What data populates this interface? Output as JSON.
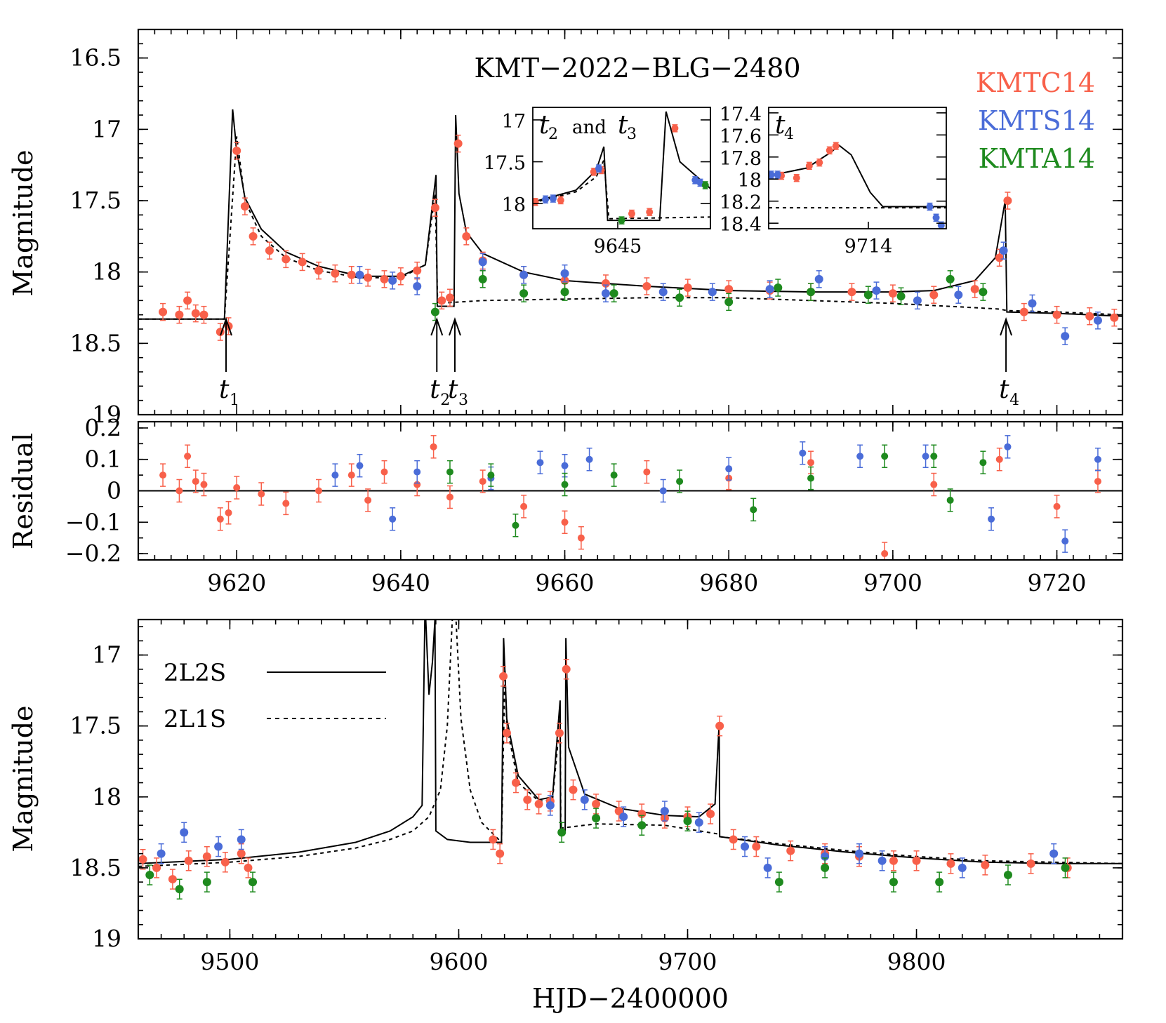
{
  "colors": {
    "KMTC14": "#F8604A",
    "KMTS14": "#4A6CD8",
    "KMTA14": "#1E8A1E",
    "model": "#000000"
  },
  "chart_data": [
    {
      "type": "scatter",
      "panel": "top-light-curve",
      "title": "KMT−2022−BLG−2480",
      "ylabel": "Magnitude",
      "xlim": [
        9608,
        9728
      ],
      "ylim": [
        19.0,
        16.3
      ],
      "y_inverted": true,
      "yticks": [
        "16.5",
        "17",
        "17.5",
        "18",
        "18.5",
        "19"
      ],
      "legend": [
        {
          "name": "KMTC14",
          "color": "#F8604A"
        },
        {
          "name": "KMTS14",
          "color": "#4A6CD8"
        },
        {
          "name": "KMTA14",
          "color": "#1E8A1E"
        }
      ],
      "legend_position": "top-right",
      "annotations": [
        {
          "label": "t",
          "sub": "1",
          "x": 9618.7
        },
        {
          "label": "t",
          "sub": "2",
          "x": 9644.4
        },
        {
          "label": "t",
          "sub": "3",
          "x": 9646.6
        },
        {
          "label": "t",
          "sub": "4",
          "x": 9713.8
        }
      ],
      "series": [
        {
          "name": "KMTC14",
          "x": [
            9611,
            9613,
            9614,
            9615,
            9616,
            9618,
            9619,
            9620,
            9621,
            9622,
            9624,
            9626,
            9628,
            9630,
            9632,
            9634,
            9636,
            9638,
            9640,
            9642,
            9644.2,
            9645,
            9646,
            9647,
            9648,
            9650,
            9655,
            9660,
            9665,
            9670,
            9675,
            9680,
            9685,
            9690,
            9695,
            9700,
            9705,
            9710,
            9713,
            9714,
            9716,
            9720,
            9724,
            9727
          ],
          "y": [
            18.28,
            18.3,
            18.2,
            18.29,
            18.3,
            18.42,
            18.38,
            17.15,
            17.54,
            17.75,
            17.85,
            17.91,
            17.93,
            17.99,
            18.01,
            18.02,
            18.04,
            18.05,
            18.03,
            17.99,
            17.55,
            18.2,
            18.18,
            17.1,
            17.75,
            17.92,
            18.02,
            18.06,
            18.08,
            18.1,
            18.11,
            18.12,
            18.13,
            18.14,
            18.14,
            18.15,
            18.16,
            18.12,
            17.9,
            17.5,
            18.28,
            18.3,
            18.31,
            18.32
          ]
        },
        {
          "name": "KMTS14",
          "x": [
            9635,
            9639,
            9642,
            9650,
            9655,
            9660,
            9665,
            9672,
            9678,
            9685,
            9691,
            9698,
            9703,
            9708,
            9713.5,
            9717,
            9721,
            9725
          ],
          "y": [
            18.02,
            18.06,
            18.1,
            17.93,
            18.02,
            18.01,
            18.15,
            18.14,
            18.14,
            18.12,
            18.05,
            18.13,
            18.2,
            18.16,
            17.85,
            18.22,
            18.45,
            18.34
          ]
        },
        {
          "name": "KMTA14",
          "x": [
            9644.2,
            9650,
            9655,
            9660,
            9666,
            9674,
            9680,
            9686,
            9690,
            9697,
            9701,
            9707,
            9711
          ],
          "y": [
            18.28,
            18.05,
            18.15,
            18.14,
            18.15,
            18.18,
            18.21,
            18.11,
            18.14,
            18.16,
            18.17,
            18.05,
            18.14
          ]
        }
      ],
      "models": [
        {
          "name": "2L2S",
          "style": "solid",
          "x": [
            9608,
            9618.5,
            9619.5,
            9620,
            9621,
            9623,
            9626,
            9630,
            9635,
            9640,
            9643,
            9644.3,
            9644.45,
            9646.5,
            9646.7,
            9647.1,
            9648,
            9650,
            9655,
            9660,
            9670,
            9680,
            9690,
            9700,
            9705,
            9710,
            9712.5,
            9713.7,
            9713.9,
            9720,
            9728
          ],
          "y": [
            18.33,
            18.33,
            16.86,
            17.15,
            17.48,
            17.7,
            17.86,
            17.96,
            18.03,
            18.03,
            17.95,
            17.32,
            18.24,
            18.24,
            16.9,
            17.45,
            17.72,
            17.87,
            18.0,
            18.06,
            18.1,
            18.13,
            18.14,
            18.14,
            18.13,
            18.06,
            17.9,
            17.5,
            18.28,
            18.29,
            18.31
          ]
        },
        {
          "name": "2L1S",
          "style": "dashed",
          "x": [
            9608,
            9618.5,
            9620,
            9621,
            9623,
            9626,
            9630,
            9635,
            9640,
            9643,
            9644.2,
            9644.5,
            9650,
            9660,
            9670,
            9680,
            9690,
            9700,
            9710,
            9713,
            9713.9,
            9720,
            9728
          ],
          "y": [
            18.33,
            18.33,
            17.05,
            17.5,
            17.75,
            17.9,
            17.99,
            18.04,
            18.04,
            17.95,
            17.45,
            18.22,
            18.2,
            18.19,
            18.18,
            18.18,
            18.2,
            18.22,
            18.25,
            18.26,
            18.27,
            18.28,
            18.3
          ]
        }
      ]
    },
    {
      "type": "scatter",
      "panel": "inset-t2-t3",
      "inset_label": {
        "t": "t",
        "sub1": "2",
        "and": "and",
        "sub2": "3"
      },
      "xtick_label": "9645",
      "yticks": [
        "17",
        "17.5",
        "18"
      ],
      "ylim": [
        18.3,
        16.85
      ],
      "xlim": [
        9641.5,
        9648.5
      ],
      "series": [
        {
          "name": "KMTC14",
          "x": [
            9641.6,
            9642.6,
            9643.9,
            9644.2,
            9645.4,
            9646.1,
            9647.1
          ],
          "y": [
            17.98,
            17.96,
            17.62,
            17.6,
            18.12,
            18.1,
            17.1
          ]
        },
        {
          "name": "KMTS14",
          "x": [
            9642.0,
            9642.3,
            9644.1,
            9647.9,
            9648.1
          ],
          "y": [
            17.95,
            17.94,
            17.58,
            17.72,
            17.75
          ]
        },
        {
          "name": "KMTA14",
          "x": [
            9645.0,
            9648.3
          ],
          "y": [
            18.2,
            17.78
          ]
        }
      ]
    },
    {
      "type": "scatter",
      "panel": "inset-t4",
      "inset_label": {
        "t": "t",
        "sub": "4"
      },
      "xtick_label": "9714",
      "yticks": [
        "17.4",
        "17.6",
        "17.8",
        "18",
        "18.2",
        "18.4"
      ],
      "ylim": [
        18.45,
        17.35
      ],
      "xlim": [
        9713.2,
        9714.6
      ],
      "series": [
        {
          "name": "KMTC14",
          "x": [
            9713.3,
            9713.42,
            9713.52,
            9713.6,
            9713.68,
            9713.73
          ],
          "y": [
            17.97,
            17.99,
            17.88,
            17.85,
            17.74,
            17.7
          ]
        },
        {
          "name": "KMTS14",
          "x": [
            9713.22,
            9713.27,
            9714.47,
            9714.52,
            9714.56
          ],
          "y": [
            17.96,
            17.96,
            18.25,
            18.35,
            18.42
          ]
        },
        {
          "name": "KMTA14",
          "x": [],
          "y": []
        }
      ]
    },
    {
      "type": "scatter",
      "panel": "residual",
      "ylabel": "Residual",
      "xlim": [
        9608,
        9728
      ],
      "ylim": [
        -0.22,
        0.22
      ],
      "yticks": [
        "0.2",
        "0.1",
        "0",
        "−0.1",
        "−0.2"
      ],
      "xticks": [
        "9620",
        "9640",
        "9660",
        "9680",
        "9700",
        "9720"
      ],
      "series": [
        {
          "name": "KMTC14",
          "x": [
            9611,
            9613,
            9614,
            9615,
            9616,
            9618,
            9619,
            9620,
            9623,
            9626,
            9630,
            9634,
            9636,
            9638,
            9642,
            9644,
            9646,
            9650,
            9655,
            9660,
            9662,
            9670,
            9680,
            9690,
            9699,
            9705,
            9713,
            9720,
            9725
          ],
          "y": [
            0.05,
            0.0,
            0.11,
            0.03,
            0.02,
            -0.09,
            -0.07,
            0.01,
            -0.01,
            -0.04,
            0.0,
            0.05,
            -0.03,
            0.06,
            0.02,
            0.14,
            -0.02,
            0.03,
            -0.05,
            -0.1,
            -0.15,
            0.06,
            0.04,
            0.09,
            -0.2,
            0.02,
            0.1,
            -0.05,
            0.03
          ]
        },
        {
          "name": "KMTS14",
          "x": [
            9632,
            9635,
            9639,
            9642,
            9651,
            9657,
            9660,
            9663,
            9672,
            9680,
            9689,
            9696,
            9704,
            9712,
            9714,
            9721,
            9725
          ],
          "y": [
            0.05,
            0.08,
            -0.09,
            0.06,
            0.04,
            0.09,
            0.08,
            0.1,
            0.0,
            0.07,
            0.12,
            0.11,
            0.11,
            -0.09,
            0.14,
            -0.16,
            0.1
          ]
        },
        {
          "name": "KMTA14",
          "x": [
            9646,
            9651,
            9654,
            9660,
            9666,
            9674,
            9683,
            9690,
            9699,
            9705,
            9707,
            9711
          ],
          "y": [
            0.06,
            0.05,
            -0.11,
            0.02,
            0.05,
            0.03,
            -0.06,
            0.04,
            0.11,
            0.11,
            -0.03,
            0.09
          ]
        }
      ],
      "models": [
        {
          "name": "zero",
          "style": "solid",
          "x": [
            9608,
            9728
          ],
          "y": [
            0,
            0
          ]
        }
      ]
    },
    {
      "type": "scatter",
      "panel": "bottom-light-curve",
      "ylabel": "Magnitude",
      "xlabel": "HJD−2400000",
      "xlim": [
        9460,
        9890
      ],
      "ylim": [
        19.0,
        16.75
      ],
      "yticks": [
        "17",
        "17.5",
        "18",
        "18.5",
        "19"
      ],
      "xticks": [
        "9500",
        "9600",
        "9700",
        "9800"
      ],
      "legend": [
        {
          "name": "2L2S",
          "style": "solid"
        },
        {
          "name": "2L1S",
          "style": "dashed"
        }
      ],
      "legend_position": "top-left",
      "series": [
        {
          "name": "KMTC14",
          "x": [
            9462,
            9468,
            9475,
            9482,
            9490,
            9498,
            9505,
            9508,
            9615,
            9618,
            9619.5,
            9621,
            9625,
            9630,
            9635,
            9640,
            9644,
            9647,
            9650,
            9660,
            9670,
            9680,
            9690,
            9700,
            9710,
            9714,
            9720,
            9730,
            9745,
            9760,
            9775,
            9790,
            9800,
            9815,
            9830,
            9850,
            9866
          ],
          "y": [
            18.44,
            18.5,
            18.58,
            18.45,
            18.42,
            18.46,
            18.4,
            18.5,
            18.3,
            18.4,
            17.15,
            17.55,
            17.9,
            18.02,
            18.05,
            18.03,
            17.55,
            17.1,
            17.95,
            18.05,
            18.1,
            18.12,
            18.15,
            18.14,
            18.12,
            17.5,
            18.3,
            18.35,
            18.38,
            18.4,
            18.42,
            18.45,
            18.45,
            18.47,
            18.48,
            18.47,
            18.5
          ]
        },
        {
          "name": "KMTS14",
          "x": [
            9470,
            9480,
            9495,
            9505,
            9640,
            9655,
            9672,
            9690,
            9705,
            9725,
            9735,
            9760,
            9775,
            9785,
            9820,
            9860
          ],
          "y": [
            18.4,
            18.25,
            18.35,
            18.3,
            18.06,
            18.02,
            18.14,
            18.1,
            18.18,
            18.35,
            18.5,
            18.42,
            18.4,
            18.45,
            18.5,
            18.4
          ]
        },
        {
          "name": "KMTA14",
          "x": [
            9465,
            9478,
            9490,
            9510,
            9645,
            9660,
            9680,
            9700,
            9740,
            9760,
            9790,
            9810,
            9840,
            9865
          ],
          "y": [
            18.55,
            18.65,
            18.6,
            18.6,
            18.25,
            18.15,
            18.2,
            18.17,
            18.6,
            18.5,
            18.6,
            18.6,
            18.55,
            18.5
          ]
        }
      ],
      "models": [
        {
          "name": "2L2S",
          "style": "solid",
          "x": [
            9460,
            9500,
            9530,
            9555,
            9570,
            9580,
            9584,
            9585.2,
            9585.6,
            9587,
            9588.5,
            9589.6,
            9590,
            9595,
            9605,
            9618.7,
            9619.6,
            9621,
            9626,
            9635,
            9641,
            9644.3,
            9644.5,
            9646.5,
            9646.8,
            9648,
            9655,
            9670,
            9690,
            9705,
            9712,
            9713.8,
            9714,
            9740,
            9770,
            9800,
            9830,
            9860,
            9890
          ],
          "y": [
            18.47,
            18.44,
            18.39,
            18.32,
            18.24,
            18.14,
            18.06,
            16.75,
            16.75,
            17.28,
            17.05,
            16.75,
            18.24,
            18.3,
            18.32,
            18.32,
            16.88,
            17.45,
            17.85,
            18.02,
            18.0,
            17.32,
            18.24,
            18.24,
            16.88,
            17.65,
            17.98,
            18.08,
            18.13,
            18.14,
            18.05,
            17.48,
            18.28,
            18.34,
            18.39,
            18.43,
            18.46,
            18.47,
            18.47
          ]
        },
        {
          "name": "2L1S",
          "style": "dashed",
          "x": [
            9460,
            9500,
            9530,
            9555,
            9570,
            9580,
            9587,
            9592,
            9595,
            9597.2,
            9598.8,
            9601,
            9605,
            9610,
            9618.7,
            9620.2,
            9621,
            9626,
            9635,
            9641,
            9644.3,
            9644.6,
            9660,
            9690,
            9713,
            9714,
            9740,
            9770,
            9800,
            9830,
            9860,
            9890
          ],
          "y": [
            18.49,
            18.46,
            18.42,
            18.36,
            18.3,
            18.24,
            18.14,
            17.95,
            17.5,
            16.75,
            16.75,
            17.45,
            17.95,
            18.18,
            18.32,
            17.1,
            17.5,
            17.9,
            18.03,
            18.02,
            17.45,
            18.22,
            18.19,
            18.2,
            18.26,
            18.28,
            18.33,
            18.38,
            18.42,
            18.45,
            18.46,
            18.47
          ]
        }
      ]
    }
  ]
}
